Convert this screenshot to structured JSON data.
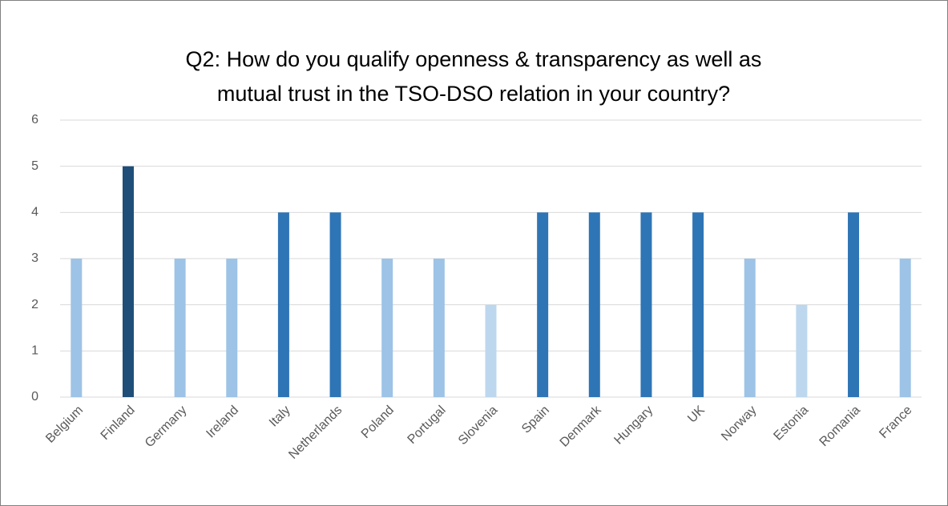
{
  "chart_data": {
    "type": "bar",
    "title": [
      "Q2: How do you qualify openness & transparency as well as",
      "mutual trust in the TSO-DSO relation in your country?"
    ],
    "categories": [
      "Belgium",
      "Finland",
      "Germany",
      "Ireland",
      "Italy",
      "Netherlands",
      "Poland",
      "Portugal",
      "Slovenia",
      "Spain",
      "Denmark",
      "Hungary",
      "UK",
      "Norway",
      "Estonia",
      "Romania",
      "France"
    ],
    "values": [
      3,
      5,
      3,
      3,
      4,
      4,
      3,
      3,
      2,
      4,
      4,
      4,
      4,
      3,
      2,
      4,
      3
    ],
    "colors": [
      "#9dc3e6",
      "#1f4e79",
      "#9dc3e6",
      "#9dc3e6",
      "#2e75b6",
      "#2e75b6",
      "#9dc3e6",
      "#9dc3e6",
      "#bdd7ee",
      "#2e75b6",
      "#2e75b6",
      "#2e75b6",
      "#2e75b6",
      "#9dc3e6",
      "#bdd7ee",
      "#2e75b6",
      "#9dc3e6"
    ],
    "ylim": [
      0,
      6
    ],
    "yticks": [
      0,
      1,
      2,
      3,
      4,
      5,
      6
    ],
    "grid": true
  }
}
